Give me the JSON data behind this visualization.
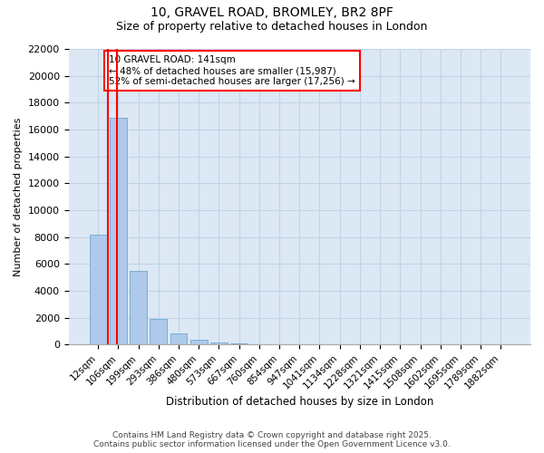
{
  "title_line1": "10, GRAVEL ROAD, BROMLEY, BR2 8PF",
  "title_line2": "Size of property relative to detached houses in London",
  "xlabel": "Distribution of detached houses by size in London",
  "ylabel": "Number of detached properties",
  "categories": [
    "12sqm",
    "106sqm",
    "199sqm",
    "293sqm",
    "386sqm",
    "480sqm",
    "573sqm",
    "667sqm",
    "760sqm",
    "854sqm",
    "947sqm",
    "1041sqm",
    "1134sqm",
    "1228sqm",
    "1321sqm",
    "1415sqm",
    "1508sqm",
    "1602sqm",
    "1695sqm",
    "1789sqm",
    "1882sqm"
  ],
  "values": [
    8200,
    16900,
    5500,
    1900,
    800,
    380,
    160,
    90,
    40,
    10,
    0,
    0,
    0,
    0,
    0,
    0,
    0,
    0,
    0,
    0,
    0
  ],
  "bar_color": "#aec9ea",
  "bar_edge_color": "#7aafd4",
  "vline_x_index": 1,
  "vline_color": "red",
  "annotation_text": "10 GRAVEL ROAD: 141sqm\n← 48% of detached houses are smaller (15,987)\n52% of semi-detached houses are larger (17,256) →",
  "annotation_box_color": "white",
  "annotation_box_edge": "red",
  "ylim": [
    0,
    22000
  ],
  "yticks": [
    0,
    2000,
    4000,
    6000,
    8000,
    10000,
    12000,
    14000,
    16000,
    18000,
    20000,
    22000
  ],
  "grid_color": "#c0d4e8",
  "background_color": "#dde8f5",
  "footer_line1": "Contains HM Land Registry data © Crown copyright and database right 2025.",
  "footer_line2": "Contains public sector information licensed under the Open Government Licence v3.0."
}
